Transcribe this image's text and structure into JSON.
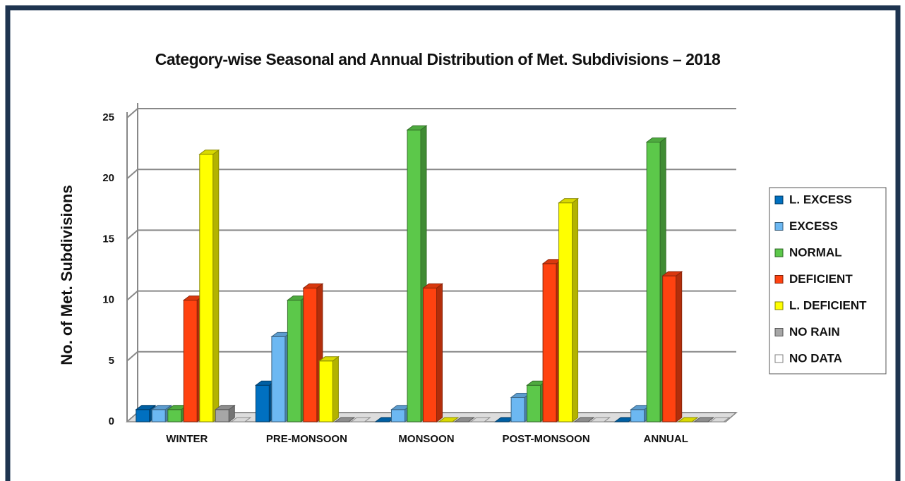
{
  "chart_data": {
    "type": "bar3d",
    "title": "Category-wise Seasonal and Annual Distribution of Met. Subdivisions – 2018",
    "y_label": "No. of Met. Subdivisions",
    "categories": [
      "WINTER",
      "PRE-MONSOON",
      "MONSOON",
      "POST-MONSOON",
      "ANNUAL"
    ],
    "series": [
      {
        "name": "L. EXCESS",
        "color": "#0070c0",
        "values": [
          1,
          3,
          0,
          0,
          0
        ]
      },
      {
        "name": "EXCESS",
        "color": "#6cb8f2",
        "values": [
          1,
          7,
          1,
          2,
          1
        ]
      },
      {
        "name": "NORMAL",
        "color": "#5cc84a",
        "values": [
          1,
          10,
          24,
          3,
          23
        ]
      },
      {
        "name": "DEFICIENT",
        "color": "#ff4210",
        "values": [
          10,
          11,
          11,
          13,
          12
        ]
      },
      {
        "name": "L. DEFICIENT",
        "color": "#ffff00",
        "values": [
          22,
          5,
          0,
          18,
          0
        ]
      },
      {
        "name": "NO RAIN",
        "color": "#a6a6a6",
        "values": [
          1,
          0,
          0,
          0,
          0
        ]
      },
      {
        "name": "NO DATA",
        "color": "#ffffff",
        "values": [
          0,
          0,
          0,
          0,
          0
        ]
      }
    ],
    "ylim": [
      0,
      25
    ],
    "yticks": [
      0,
      5,
      10,
      15,
      20,
      25
    ],
    "grid": true,
    "legend": "right"
  }
}
